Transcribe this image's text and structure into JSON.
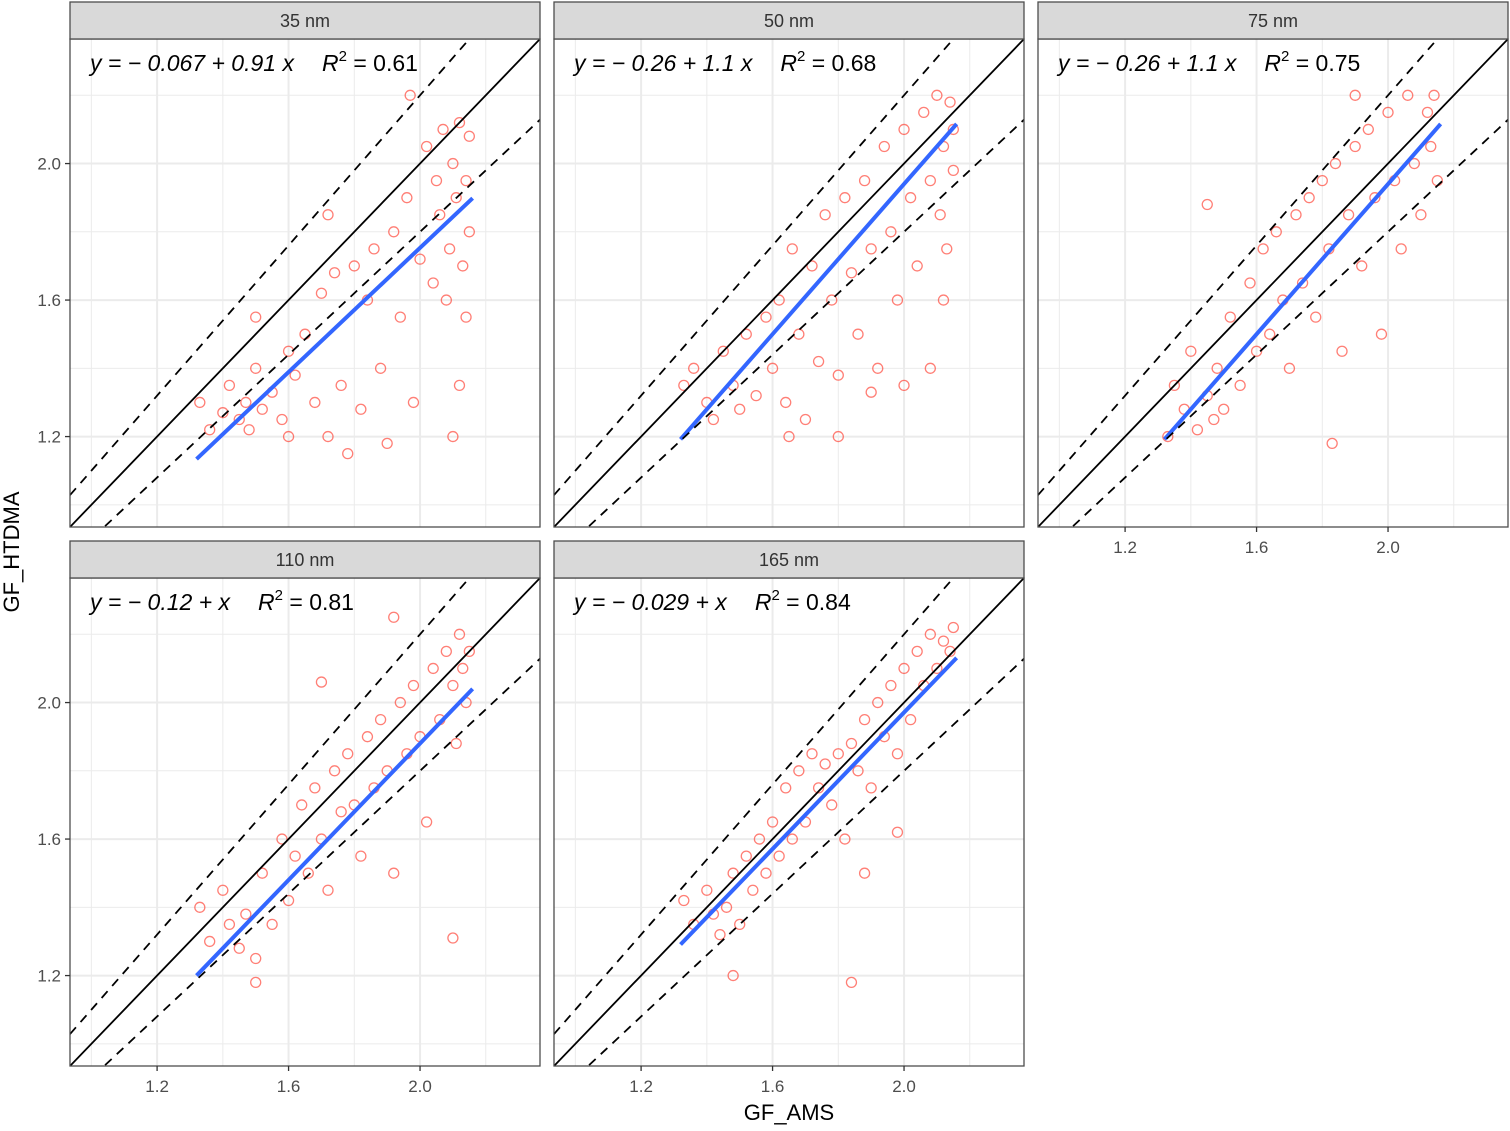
{
  "chart_data": [
    {
      "type": "scatter",
      "panel": "35 nm",
      "equation": "y = − 0.067 + 0.91 x",
      "r2": "0.61",
      "fit": {
        "intercept": -0.067,
        "slope": 0.91,
        "x_range": [
          1.32,
          2.16
        ]
      },
      "points": [
        [
          1.33,
          1.3
        ],
        [
          1.36,
          1.22
        ],
        [
          1.4,
          1.27
        ],
        [
          1.42,
          1.35
        ],
        [
          1.45,
          1.25
        ],
        [
          1.47,
          1.3
        ],
        [
          1.48,
          1.22
        ],
        [
          1.5,
          1.4
        ],
        [
          1.52,
          1.28
        ],
        [
          1.55,
          1.33
        ],
        [
          1.58,
          1.25
        ],
        [
          1.6,
          1.45
        ],
        [
          1.62,
          1.38
        ],
        [
          1.65,
          1.5
        ],
        [
          1.68,
          1.3
        ],
        [
          1.7,
          1.62
        ],
        [
          1.72,
          1.2
        ],
        [
          1.74,
          1.68
        ],
        [
          1.76,
          1.35
        ],
        [
          1.78,
          1.15
        ],
        [
          1.8,
          1.7
        ],
        [
          1.82,
          1.28
        ],
        [
          1.84,
          1.6
        ],
        [
          1.86,
          1.75
        ],
        [
          1.88,
          1.4
        ],
        [
          1.9,
          1.18
        ],
        [
          1.92,
          1.8
        ],
        [
          1.94,
          1.55
        ],
        [
          1.96,
          1.9
        ],
        [
          1.98,
          1.3
        ],
        [
          2.0,
          1.72
        ],
        [
          2.02,
          2.05
        ],
        [
          2.04,
          1.65
        ],
        [
          2.05,
          1.95
        ],
        [
          2.06,
          1.85
        ],
        [
          2.07,
          2.1
        ],
        [
          2.08,
          1.6
        ],
        [
          2.09,
          1.75
        ],
        [
          2.1,
          2.0
        ],
        [
          2.11,
          1.9
        ],
        [
          2.12,
          2.12
        ],
        [
          2.13,
          1.7
        ],
        [
          2.14,
          1.55
        ],
        [
          2.14,
          1.95
        ],
        [
          2.15,
          2.08
        ],
        [
          2.15,
          1.8
        ],
        [
          2.1,
          1.2
        ],
        [
          2.12,
          1.35
        ],
        [
          1.97,
          2.2
        ],
        [
          1.72,
          1.85
        ],
        [
          1.6,
          1.2
        ],
        [
          1.5,
          1.55
        ]
      ]
    },
    {
      "type": "scatter",
      "panel": "50 nm",
      "equation": "y = − 0.26 + 1.1 x",
      "r2": "0.68",
      "fit": {
        "intercept": -0.26,
        "slope": 1.1,
        "x_range": [
          1.32,
          2.16
        ]
      },
      "points": [
        [
          1.33,
          1.35
        ],
        [
          1.36,
          1.4
        ],
        [
          1.4,
          1.3
        ],
        [
          1.42,
          1.25
        ],
        [
          1.45,
          1.45
        ],
        [
          1.48,
          1.35
        ],
        [
          1.5,
          1.28
        ],
        [
          1.52,
          1.5
        ],
        [
          1.55,
          1.32
        ],
        [
          1.58,
          1.55
        ],
        [
          1.6,
          1.4
        ],
        [
          1.62,
          1.6
        ],
        [
          1.64,
          1.3
        ],
        [
          1.66,
          1.75
        ],
        [
          1.68,
          1.5
        ],
        [
          1.7,
          1.25
        ],
        [
          1.72,
          1.7
        ],
        [
          1.74,
          1.42
        ],
        [
          1.76,
          1.85
        ],
        [
          1.78,
          1.6
        ],
        [
          1.8,
          1.38
        ],
        [
          1.82,
          1.9
        ],
        [
          1.84,
          1.68
        ],
        [
          1.86,
          1.5
        ],
        [
          1.88,
          1.95
        ],
        [
          1.9,
          1.75
        ],
        [
          1.92,
          1.4
        ],
        [
          1.94,
          2.05
        ],
        [
          1.96,
          1.8
        ],
        [
          1.98,
          1.6
        ],
        [
          2.0,
          2.1
        ],
        [
          2.02,
          1.9
        ],
        [
          2.04,
          1.7
        ],
        [
          2.06,
          2.15
        ],
        [
          2.08,
          1.95
        ],
        [
          2.1,
          2.2
        ],
        [
          2.11,
          1.85
        ],
        [
          2.12,
          2.05
        ],
        [
          2.13,
          1.75
        ],
        [
          2.14,
          2.18
        ],
        [
          2.15,
          1.98
        ],
        [
          2.15,
          2.1
        ],
        [
          2.0,
          1.35
        ],
        [
          1.9,
          1.33
        ],
        [
          1.8,
          1.2
        ],
        [
          1.65,
          1.2
        ],
        [
          2.08,
          1.4
        ],
        [
          2.12,
          1.6
        ]
      ]
    },
    {
      "type": "scatter",
      "panel": "75 nm",
      "equation": "y = − 0.26 + 1.1 x",
      "r2": "0.75",
      "fit": {
        "intercept": -0.26,
        "slope": 1.1,
        "x_range": [
          1.32,
          2.16
        ]
      },
      "points": [
        [
          1.33,
          1.2
        ],
        [
          1.35,
          1.35
        ],
        [
          1.38,
          1.28
        ],
        [
          1.4,
          1.45
        ],
        [
          1.42,
          1.22
        ],
        [
          1.45,
          1.32
        ],
        [
          1.47,
          1.25
        ],
        [
          1.48,
          1.4
        ],
        [
          1.5,
          1.28
        ],
        [
          1.52,
          1.55
        ],
        [
          1.55,
          1.35
        ],
        [
          1.58,
          1.65
        ],
        [
          1.6,
          1.45
        ],
        [
          1.62,
          1.75
        ],
        [
          1.64,
          1.5
        ],
        [
          1.66,
          1.8
        ],
        [
          1.68,
          1.6
        ],
        [
          1.7,
          1.4
        ],
        [
          1.72,
          1.85
        ],
        [
          1.74,
          1.65
        ],
        [
          1.76,
          1.9
        ],
        [
          1.78,
          1.55
        ],
        [
          1.8,
          1.95
        ],
        [
          1.82,
          1.75
        ],
        [
          1.84,
          2.0
        ],
        [
          1.86,
          1.45
        ],
        [
          1.88,
          1.85
        ],
        [
          1.9,
          2.05
        ],
        [
          1.92,
          1.7
        ],
        [
          1.94,
          2.1
        ],
        [
          1.96,
          1.9
        ],
        [
          1.98,
          1.5
        ],
        [
          2.0,
          2.15
        ],
        [
          2.02,
          1.95
        ],
        [
          2.04,
          1.75
        ],
        [
          2.06,
          2.2
        ],
        [
          2.08,
          2.0
        ],
        [
          2.1,
          1.85
        ],
        [
          2.12,
          2.15
        ],
        [
          2.13,
          2.05
        ],
        [
          2.14,
          2.2
        ],
        [
          2.15,
          1.95
        ],
        [
          1.83,
          1.18
        ],
        [
          1.45,
          1.88
        ],
        [
          1.9,
          2.2
        ]
      ]
    },
    {
      "type": "scatter",
      "panel": "110 nm",
      "equation": "y = − 0.12 +  x",
      "r2": "0.81",
      "fit": {
        "intercept": -0.12,
        "slope": 1.0,
        "x_range": [
          1.32,
          2.16
        ]
      },
      "points": [
        [
          1.33,
          1.4
        ],
        [
          1.36,
          1.3
        ],
        [
          1.4,
          1.45
        ],
        [
          1.42,
          1.35
        ],
        [
          1.45,
          1.28
        ],
        [
          1.47,
          1.38
        ],
        [
          1.5,
          1.25
        ],
        [
          1.52,
          1.5
        ],
        [
          1.55,
          1.35
        ],
        [
          1.58,
          1.6
        ],
        [
          1.6,
          1.42
        ],
        [
          1.62,
          1.55
        ],
        [
          1.64,
          1.7
        ],
        [
          1.66,
          1.5
        ],
        [
          1.68,
          1.75
        ],
        [
          1.7,
          1.6
        ],
        [
          1.72,
          1.45
        ],
        [
          1.74,
          1.8
        ],
        [
          1.76,
          1.68
        ],
        [
          1.78,
          1.85
        ],
        [
          1.8,
          1.7
        ],
        [
          1.82,
          1.55
        ],
        [
          1.84,
          1.9
        ],
        [
          1.86,
          1.75
        ],
        [
          1.88,
          1.95
        ],
        [
          1.9,
          1.8
        ],
        [
          1.92,
          1.5
        ],
        [
          1.94,
          2.0
        ],
        [
          1.96,
          1.85
        ],
        [
          1.98,
          2.05
        ],
        [
          2.0,
          1.9
        ],
        [
          2.02,
          1.65
        ],
        [
          2.04,
          2.1
        ],
        [
          2.06,
          1.95
        ],
        [
          2.08,
          2.15
        ],
        [
          2.1,
          2.05
        ],
        [
          2.11,
          1.88
        ],
        [
          2.12,
          2.2
        ],
        [
          2.13,
          2.1
        ],
        [
          2.14,
          2.0
        ],
        [
          2.15,
          2.15
        ],
        [
          2.1,
          1.31
        ],
        [
          1.5,
          1.18
        ],
        [
          1.92,
          2.25
        ],
        [
          1.7,
          2.06
        ]
      ]
    },
    {
      "type": "scatter",
      "panel": "165 nm",
      "equation": "y = − 0.029 +  x",
      "r2": "0.84",
      "fit": {
        "intercept": -0.029,
        "slope": 1.0,
        "x_range": [
          1.32,
          2.16
        ]
      },
      "points": [
        [
          1.33,
          1.42
        ],
        [
          1.36,
          1.35
        ],
        [
          1.4,
          1.45
        ],
        [
          1.42,
          1.38
        ],
        [
          1.44,
          1.32
        ],
        [
          1.46,
          1.4
        ],
        [
          1.48,
          1.5
        ],
        [
          1.5,
          1.35
        ],
        [
          1.52,
          1.55
        ],
        [
          1.54,
          1.45
        ],
        [
          1.56,
          1.6
        ],
        [
          1.58,
          1.5
        ],
        [
          1.6,
          1.65
        ],
        [
          1.62,
          1.55
        ],
        [
          1.64,
          1.75
        ],
        [
          1.66,
          1.6
        ],
        [
          1.68,
          1.8
        ],
        [
          1.7,
          1.65
        ],
        [
          1.72,
          1.85
        ],
        [
          1.74,
          1.75
        ],
        [
          1.76,
          1.82
        ],
        [
          1.78,
          1.7
        ],
        [
          1.8,
          1.85
        ],
        [
          1.82,
          1.6
        ],
        [
          1.84,
          1.88
        ],
        [
          1.86,
          1.8
        ],
        [
          1.88,
          1.95
        ],
        [
          1.9,
          1.75
        ],
        [
          1.92,
          2.0
        ],
        [
          1.94,
          1.9
        ],
        [
          1.96,
          2.05
        ],
        [
          1.98,
          1.85
        ],
        [
          2.0,
          2.1
        ],
        [
          2.02,
          1.95
        ],
        [
          2.04,
          2.15
        ],
        [
          2.06,
          2.05
        ],
        [
          2.08,
          2.2
        ],
        [
          2.1,
          2.1
        ],
        [
          2.12,
          2.18
        ],
        [
          2.14,
          2.15
        ],
        [
          2.15,
          2.22
        ],
        [
          1.84,
          1.18
        ],
        [
          1.48,
          1.2
        ],
        [
          1.88,
          1.5
        ],
        [
          1.98,
          1.62
        ]
      ]
    }
  ],
  "axes": {
    "xlabel": "GF_AMS",
    "ylabel": "GF_HTDMA",
    "xlim": [
      0.935,
      2.365
    ],
    "ylim": [
      0.935,
      2.365
    ],
    "xticks": [
      "1.2",
      "1.6",
      "2.0"
    ],
    "yticks": [
      "1.2",
      "1.6",
      "2.0"
    ],
    "reference_lines": {
      "one_to_one": 1.0,
      "dashed_upper_slope": 1.1,
      "dashed_lower_slope": 0.9
    }
  },
  "colors": {
    "points": "#ff2a1a",
    "fit": "#3366ff",
    "strip": "#d9d9d9",
    "grid": "#ebebeb"
  }
}
